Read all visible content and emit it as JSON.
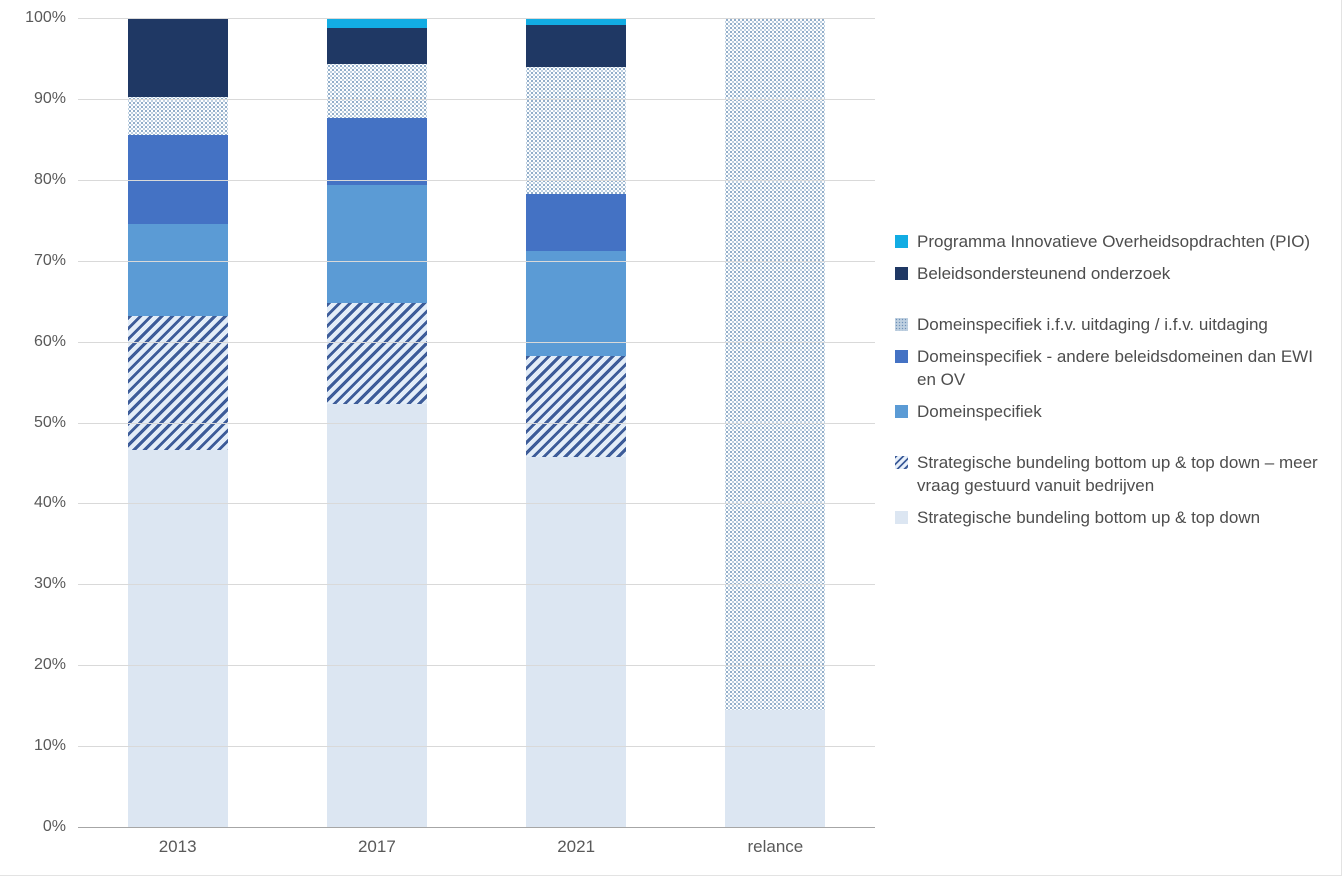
{
  "chart_data": {
    "type": "bar",
    "subtype": "stacked-100-percent-column",
    "categories": [
      "2013",
      "2017",
      "2021",
      "relance"
    ],
    "series": [
      {
        "key": "light",
        "name": "Strategische bundeling bottom up & top down",
        "values": [
          46.6,
          52.3,
          45.7,
          14.5
        ]
      },
      {
        "key": "hatch",
        "name": "Strategische bundeling bottom up & top down – meer vraag gestuurd vanuit bedrijven",
        "values": [
          16.6,
          12.5,
          12.5,
          0
        ]
      },
      {
        "key": "dom",
        "name": "Domeinspecifiek",
        "values": [
          11.3,
          14.6,
          13.0,
          0
        ]
      },
      {
        "key": "andere",
        "name": "Domeinspecifiek - andere beleidsdomeinen dan EWI en OV",
        "values": [
          11.1,
          8.3,
          7.0,
          0
        ]
      },
      {
        "key": "dotted",
        "name": "Domeinspecifiek i.f.v. uitdaging / i.f.v. uitdaging",
        "values": [
          4.6,
          6.6,
          15.8,
          85.5
        ]
      },
      {
        "key": "navy",
        "name": "Beleidsondersteunend onderzoek",
        "values": [
          9.8,
          4.5,
          5.1,
          0
        ]
      },
      {
        "key": "pio",
        "name": "Programma Innovatieve Overheidsopdrachten (PIO)",
        "values": [
          0,
          1.2,
          0.9,
          0
        ]
      }
    ],
    "title": "",
    "xlabel": "",
    "ylabel": "",
    "ylim": [
      0,
      100
    ],
    "y_ticks": [
      "100%",
      "90%",
      "80%",
      "70%",
      "60%",
      "50%",
      "40%",
      "30%",
      "20%",
      "10%",
      "0%"
    ],
    "grid": true,
    "legend_position": "right"
  },
  "legend": {
    "items": [
      {
        "key": "pio",
        "label": "Programma Innovatieve Overheidsopdrachten (PIO)",
        "gap": false
      },
      {
        "key": "navy",
        "label": "Beleidsondersteunend onderzoek",
        "gap": false
      },
      {
        "key": "dotted",
        "label": "Domeinspecifiek i.f.v. uitdaging / i.f.v. uitdaging",
        "gap": true
      },
      {
        "key": "andere",
        "label": "Domeinspecifiek - andere beleidsdomeinen dan EWI en OV",
        "gap": false
      },
      {
        "key": "dom",
        "label": "Domeinspecifiek",
        "gap": false
      },
      {
        "key": "hatch",
        "label": "Strategische bundeling bottom up & top down – meer vraag gestuurd vanuit bedrijven",
        "gap": true
      },
      {
        "key": "light",
        "label": "Strategische bundeling bottom up & top down",
        "gap": false
      }
    ]
  },
  "colors": {
    "pio": "#12ace3",
    "navy": "#1f3864",
    "dotted_dot": "#6e93b8",
    "dotted_bg": "#fdfeff",
    "andere": "#4472c4",
    "dom": "#5b9bd5",
    "hatch_stripe": "#3d5c99",
    "hatch_bg": "#e3edf8",
    "light": "#dce6f2",
    "gridline": "#d9d9d9",
    "axis_line": "#a6a6a6",
    "tick_text": "#595959",
    "legend_text": "#4d4d4d"
  }
}
